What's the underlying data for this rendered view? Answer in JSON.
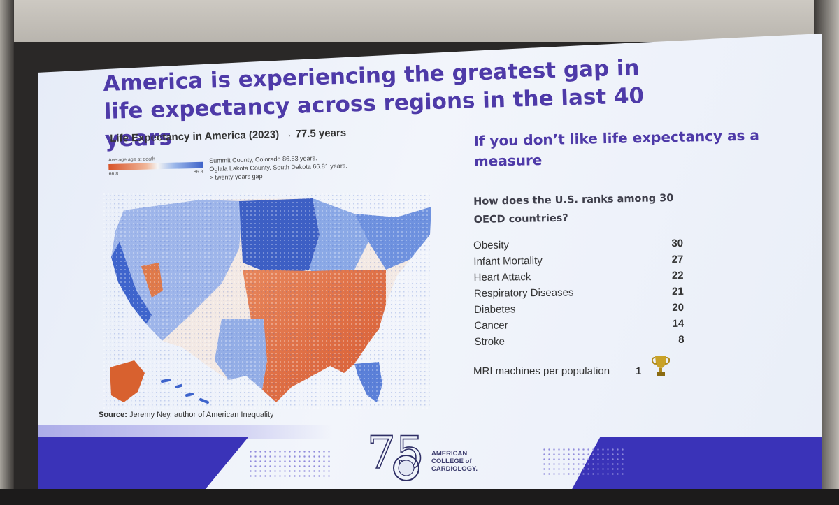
{
  "slide": {
    "title": "America is experiencing the greatest gap in life expectancy across regions in the last 40 years"
  },
  "map": {
    "title": "Life Expectancy in America (2023) → 77.5 years",
    "legend": {
      "label": "Average age at death",
      "min": "66.8",
      "max": "86.8"
    },
    "notes": [
      "Summit County, Colorado 86.83 years.",
      "Oglala Lakota County, South Dakota 66.81 years.",
      "> twenty years gap"
    ],
    "colors": {
      "low": "#d8542a",
      "mid": "#f4f4f4",
      "high": "#3f63c9"
    }
  },
  "source": {
    "label": "Source:",
    "text": "Jeremy Ney, author of",
    "book": "American Inequality"
  },
  "rankings": {
    "heading": "If you don’t like life expectancy as a measure",
    "question": "How does the U.S. ranks among 30 OECD countries?",
    "items": [
      {
        "label": "Obesity",
        "rank": "30"
      },
      {
        "label": "Infant Mortality",
        "rank": "27"
      },
      {
        "label": "Heart Attack",
        "rank": "22"
      },
      {
        "label": "Respiratory Diseases",
        "rank": "21"
      },
      {
        "label": "Diabetes",
        "rank": "20"
      },
      {
        "label": "Cancer",
        "rank": "14"
      },
      {
        "label": "Stroke",
        "rank": "8"
      }
    ],
    "mri": {
      "label": "MRI machines per population",
      "rank": "1"
    }
  },
  "logo": {
    "number": "75",
    "lines": [
      "AMERICAN",
      "COLLEGE of",
      "CARDIOLOGY."
    ]
  },
  "theme": {
    "title_color": "#4e3aa8",
    "band_color": "#3a33b8"
  }
}
